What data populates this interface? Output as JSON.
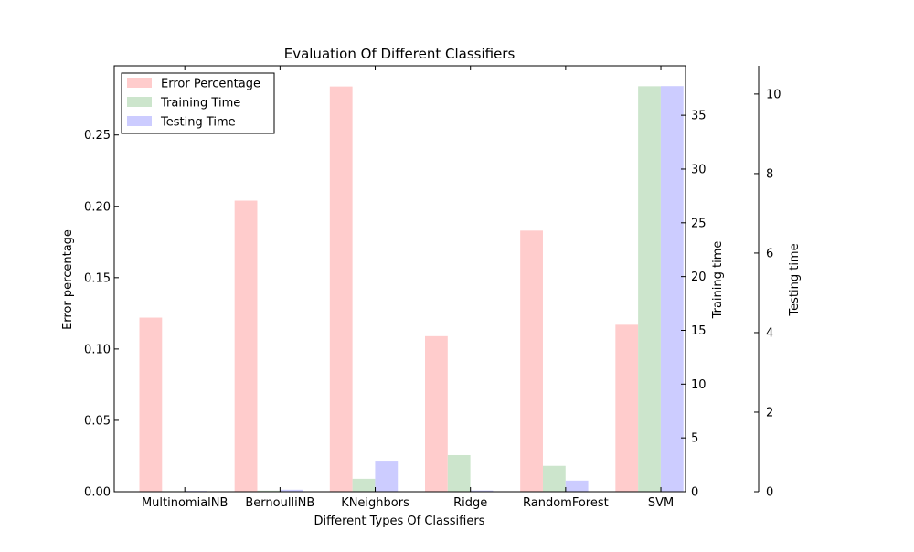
{
  "chart_data": {
    "type": "bar",
    "title": "Evaluation Of Different Classifiers",
    "xlabel": "Different Types Of Classifiers",
    "categories": [
      "MultinomialNB",
      "BernoulliNB",
      "KNeighbors",
      "Ridge",
      "RandomForest",
      "SVM"
    ],
    "series": [
      {
        "name": "Error Percentage",
        "axis": "left",
        "color": "#ffcccc",
        "values": [
          0.122,
          0.204,
          0.284,
          0.109,
          0.183,
          0.117
        ]
      },
      {
        "name": "Training Time",
        "axis": "right1",
        "color": "#cce5cc",
        "values": [
          0.05,
          0.1,
          1.2,
          3.4,
          2.4,
          37.7
        ]
      },
      {
        "name": "Testing Time",
        "axis": "right2",
        "color": "#ccccff",
        "values": [
          0.02,
          0.05,
          0.78,
          0.03,
          0.28,
          10.2
        ]
      }
    ],
    "axes": {
      "left": {
        "label": "Error percentage",
        "ylim": [
          0,
          0.2985
        ],
        "ticks": [
          "0.00",
          "0.05",
          "0.10",
          "0.15",
          "0.20",
          "0.25"
        ]
      },
      "right1": {
        "label": "Training time",
        "ylim": [
          0,
          39.6
        ],
        "ticks": [
          "0",
          "5",
          "10",
          "15",
          "20",
          "25",
          "30",
          "35"
        ]
      },
      "right2": {
        "label": "Testing time",
        "ylim": [
          0,
          10.71
        ],
        "ticks": [
          "0",
          "2",
          "4",
          "6",
          "8",
          "10"
        ]
      }
    },
    "legend": {
      "placement": "top-left"
    },
    "grid": false
  }
}
